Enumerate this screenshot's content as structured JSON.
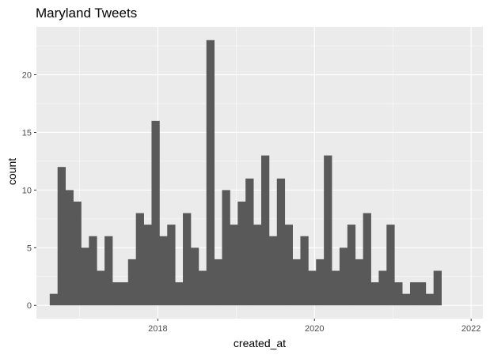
{
  "chart_data": {
    "type": "bar",
    "title": "Maryland Tweets",
    "xlabel": "created_at",
    "ylabel": "count",
    "x_ticks": [
      "2018",
      "2020",
      "2022"
    ],
    "x_tick_years": [
      2018,
      2020,
      2022
    ],
    "y_ticks": [
      0,
      5,
      10,
      15,
      20
    ],
    "x_range": [
      2016.45,
      2022.15
    ],
    "ylim": [
      -1.15,
      24.15
    ],
    "bin_start": 2016.62,
    "bin_width": 0.1,
    "values": [
      1,
      12,
      10,
      9,
      5,
      6,
      3,
      6,
      2,
      2,
      4,
      8,
      7,
      16,
      6,
      7,
      2,
      8,
      5,
      3,
      23,
      4,
      10,
      7,
      9,
      11,
      7,
      13,
      6,
      11,
      7,
      4,
      6,
      3,
      4,
      13,
      3,
      5,
      7,
      4,
      8,
      2,
      3,
      7,
      2,
      1,
      2,
      2,
      1,
      3
    ],
    "grid": true,
    "colors": {
      "panel": "#ebebeb",
      "grid_major": "#ffffff",
      "bar": "#595959",
      "tick": "#333333"
    }
  }
}
